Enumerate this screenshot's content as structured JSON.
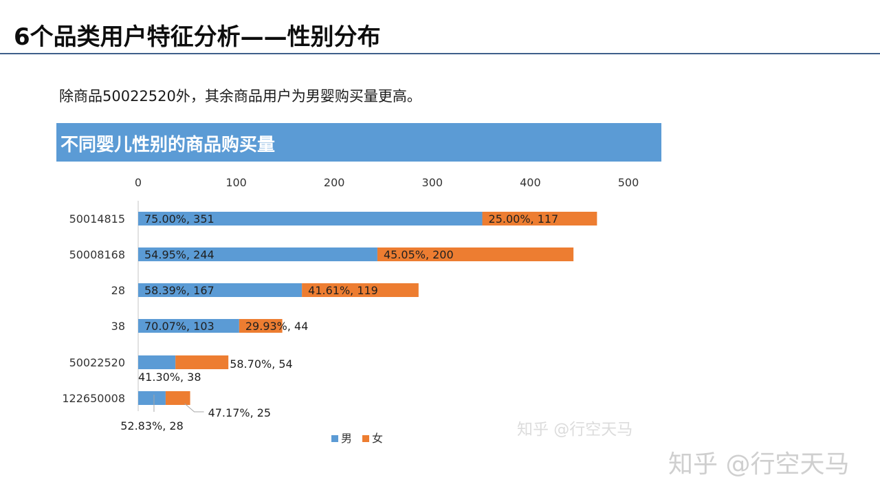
{
  "page": {
    "title": "6个品类用户特征分析——性别分布",
    "subtitle": "除商品50022520外，其余商品用户为男婴购买量更高。"
  },
  "watermark": {
    "small": "知乎 @行空天马",
    "large": "知乎 @行空天马"
  },
  "colors": {
    "banner": "#5b9bd5",
    "male": "#5b9bd5",
    "female": "#ed7d31",
    "rule": "#3e5f8a"
  },
  "chart_data": {
    "type": "bar",
    "orientation": "horizontal",
    "stacked": true,
    "title": "不同婴儿性别的商品购买量",
    "xlim": [
      0,
      500
    ],
    "xticks": [
      0,
      100,
      200,
      300,
      400,
      500
    ],
    "x_axis_position": "top",
    "grid": false,
    "legend_position": "bottom",
    "categories": [
      "50014815",
      "50008168",
      "28",
      "38",
      "50022520",
      "122650008"
    ],
    "series": [
      {
        "name": "男",
        "color": "#5b9bd5",
        "values": [
          351,
          244,
          167,
          103,
          38,
          28
        ],
        "labels": [
          "75.00%, 351",
          "54.95%, 244",
          "58.39%, 167",
          "70.07%, 103",
          "41.30%, 38",
          "52.83%, 28"
        ]
      },
      {
        "name": "女",
        "color": "#ed7d31",
        "values": [
          117,
          200,
          119,
          44,
          54,
          25
        ],
        "labels": [
          "25.00%, 117",
          "45.05%, 200",
          "41.61%, 119",
          "29.93%, 44",
          "58.70%, 54",
          "47.17%, 25"
        ]
      }
    ]
  }
}
